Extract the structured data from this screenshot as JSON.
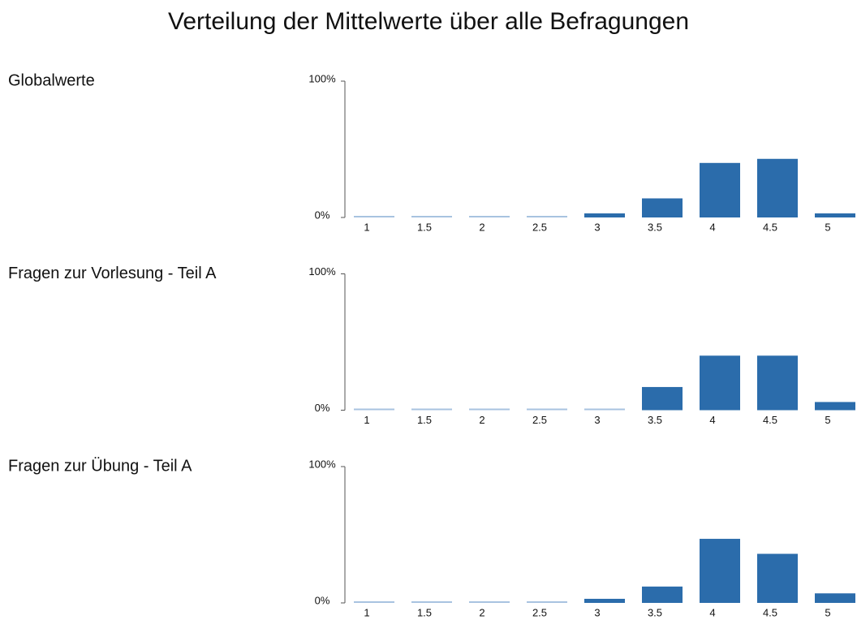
{
  "title": "Verteilung der Mittelwerte über alle Befragungen",
  "chart_data": [
    {
      "type": "bar",
      "title": "Globalwerte",
      "categories": [
        "1",
        "1.5",
        "2",
        "2.5",
        "3",
        "3.5",
        "4",
        "4.5",
        "5"
      ],
      "values": [
        0,
        0,
        0,
        0,
        3,
        14,
        40,
        43,
        3
      ],
      "color": "#2b6cab",
      "ylim": [
        0,
        100
      ],
      "yticks": [
        {
          "value": 0,
          "label": "0%"
        },
        {
          "value": 100,
          "label": "100%"
        }
      ]
    },
    {
      "type": "bar",
      "title": "Fragen zur Vorlesung - Teil A",
      "categories": [
        "1",
        "1.5",
        "2",
        "2.5",
        "3",
        "3.5",
        "4",
        "4.5",
        "5"
      ],
      "values": [
        0,
        0,
        0,
        0,
        0,
        17,
        40,
        40,
        6
      ],
      "color": "#2b6cab",
      "ylim": [
        0,
        100
      ],
      "yticks": [
        {
          "value": 0,
          "label": "0%"
        },
        {
          "value": 100,
          "label": "100%"
        }
      ]
    },
    {
      "type": "bar",
      "title": "Fragen zur Übung - Teil A",
      "categories": [
        "1",
        "1.5",
        "2",
        "2.5",
        "3",
        "3.5",
        "4",
        "4.5",
        "5"
      ],
      "values": [
        0,
        0,
        0,
        0,
        3,
        12,
        47,
        36,
        7
      ],
      "color": "#2b6cab",
      "ylim": [
        0,
        100
      ],
      "yticks": [
        {
          "value": 0,
          "label": "0%"
        },
        {
          "value": 100,
          "label": "100%"
        }
      ]
    }
  ]
}
